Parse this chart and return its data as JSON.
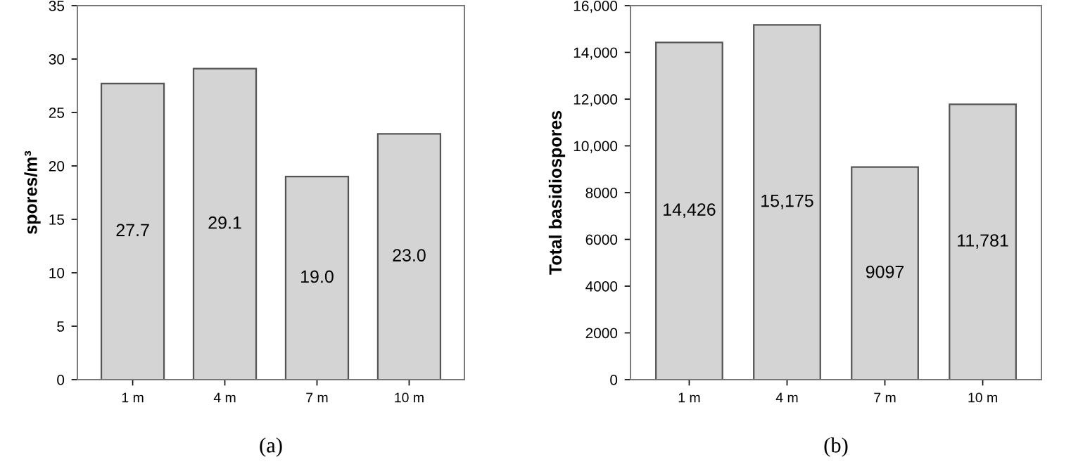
{
  "chart_data": [
    {
      "type": "bar",
      "ylabel": "spores/m³",
      "categories": [
        "1 m",
        "4 m",
        "7 m",
        "10 m"
      ],
      "values": [
        27.7,
        29.1,
        19.0,
        23.0
      ],
      "color": "#d4d4d4",
      "value_labels": [
        "27.7",
        "29.1",
        "19.0",
        "23.0"
      ],
      "ylim": [
        0,
        35
      ],
      "yticks": [
        0,
        5,
        10,
        15,
        20,
        25,
        30,
        35
      ],
      "grid": false,
      "annotations": [
        "(a)"
      ]
    },
    {
      "type": "bar",
      "ylabel": "Total basidiospores",
      "categories": [
        "1 m",
        "4 m",
        "7 m",
        "10 m"
      ],
      "values": [
        14426,
        15175,
        9097,
        11781
      ],
      "color": "#d4d4d4",
      "value_labels": [
        "14,426",
        "15,175",
        "9097",
        "11,781"
      ],
      "ylim": [
        0,
        16000
      ],
      "yticks": [
        0,
        2000,
        4000,
        6000,
        8000,
        {
          "value": 10000,
          "label": "10,000"
        },
        {
          "value": 12000,
          "label": "12,000"
        },
        {
          "value": 14000,
          "label": "14,000"
        },
        {
          "value": 16000,
          "label": "16,000"
        }
      ],
      "grid": false,
      "annotations": [
        "(b)"
      ]
    }
  ]
}
